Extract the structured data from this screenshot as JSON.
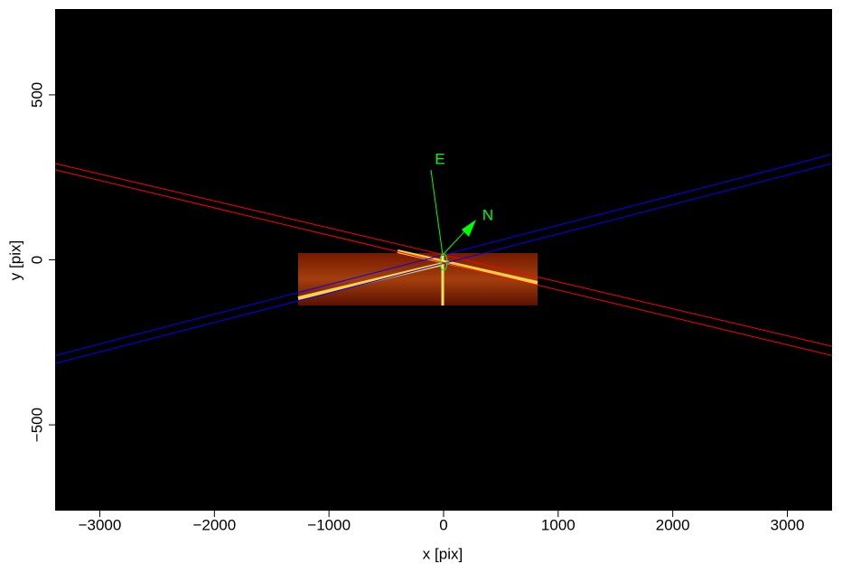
{
  "chart_data": {
    "type": "image",
    "xlabel": "x [pix]",
    "ylabel": "y [pix]",
    "xlim": [
      -3390,
      3390
    ],
    "ylim": [
      -760,
      760
    ],
    "xticks": [
      {
        "value": -3000,
        "label": "−3000"
      },
      {
        "value": -2000,
        "label": "−2000"
      },
      {
        "value": -1000,
        "label": "−1000"
      },
      0,
      1000,
      2000,
      3000
    ],
    "yticks": [
      {
        "value": -500,
        "label": "−500"
      },
      0,
      500
    ],
    "annotations": [
      "E",
      "N"
    ],
    "series": [
      {
        "color": "#ff0000",
        "x": [
          -3390,
          3390
        ],
        "values": [
          292,
          -262
        ]
      },
      {
        "color": "#ff0000",
        "x": [
          -3390,
          3390
        ],
        "values": [
          273,
          -290
        ]
      },
      {
        "color": "#0000ff",
        "x": [
          -3390,
          3390
        ],
        "values": [
          -290,
          320
        ]
      },
      {
        "color": "#0000ff",
        "x": [
          -3390,
          3390
        ],
        "values": [
          -314,
          292
        ]
      }
    ]
  }
}
